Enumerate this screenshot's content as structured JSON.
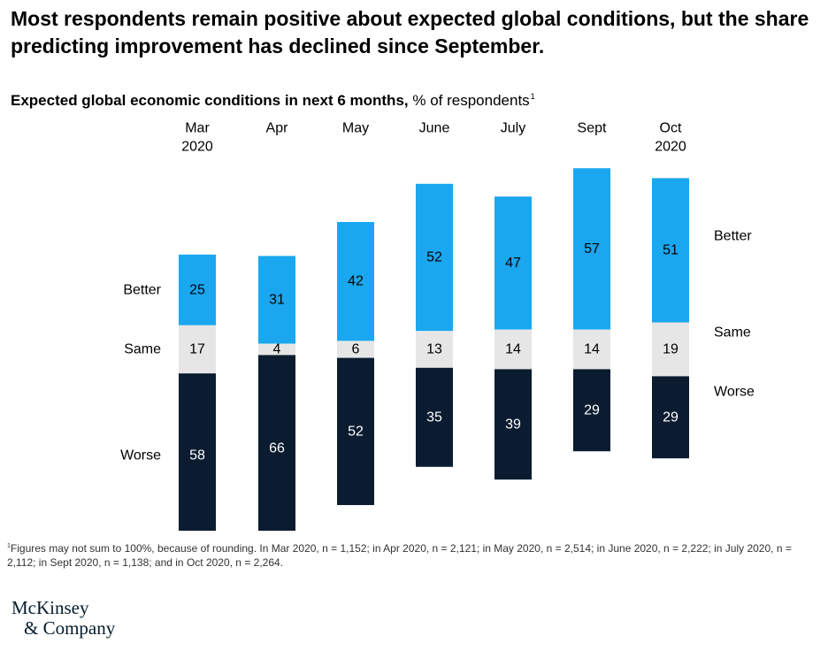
{
  "headline": "Most respondents remain positive about expected global conditions, but the share predicting improvement has declined since September.",
  "subtitle": {
    "bold": "Expected global economic conditions in next 6 months,",
    "rest": "% of respondents",
    "footnote_mark": "1"
  },
  "chart_data": {
    "type": "bar",
    "stacked": true,
    "diverging": true,
    "categories": [
      "Mar\n2020",
      "Apr",
      "May",
      "June",
      "July",
      "Sept",
      "Oct\n2020"
    ],
    "series": [
      {
        "name": "Better",
        "values": [
          25,
          31,
          42,
          52,
          47,
          57,
          51
        ],
        "color": "#1aa7f0"
      },
      {
        "name": "Same",
        "values": [
          17,
          4,
          6,
          13,
          14,
          14,
          19
        ],
        "color": "#e6e6e6"
      },
      {
        "name": "Worse",
        "values": [
          58,
          66,
          52,
          35,
          39,
          29,
          29
        ],
        "color": "#0b1c30"
      }
    ],
    "left_labels": [
      "Better",
      "Same",
      "Worse"
    ],
    "right_labels": [
      "Better",
      "Same",
      "Worse"
    ],
    "grid": false,
    "legend": "inline labels at left and right"
  },
  "footnote": {
    "mark": "1",
    "text": "Figures may not sum to 100%, because of rounding. In Mar 2020, n = 1,152; in Apr 2020, n = 2,121; in May 2020, n = 2,514; in June 2020, n = 2,222; in July 2020, n = 2,112; in Sept 2020, n = 1,138; and in Oct 2020, n = 2,264."
  },
  "logo": {
    "line1": "McKinsey",
    "line2": "& Company"
  }
}
